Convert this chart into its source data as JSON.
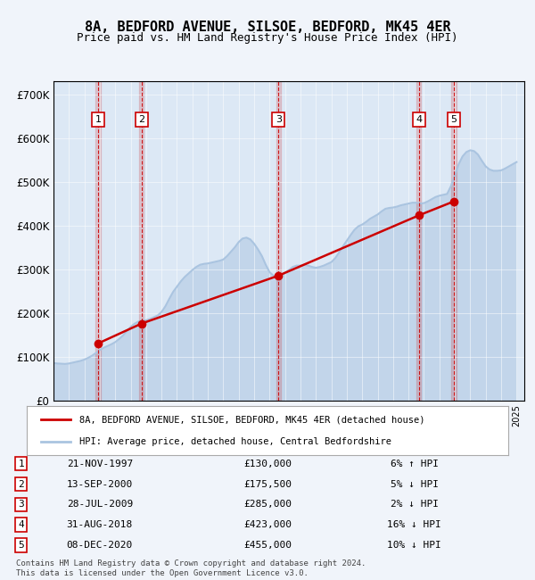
{
  "title": "8A, BEDFORD AVENUE, SILSOE, BEDFORD, MK45 4ER",
  "subtitle": "Price paid vs. HM Land Registry's House Price Index (HPI)",
  "footer": "Contains HM Land Registry data © Crown copyright and database right 2024.\nThis data is licensed under the Open Government Licence v3.0.",
  "legend_line1": "8A, BEDFORD AVENUE, SILSOE, BEDFORD, MK45 4ER (detached house)",
  "legend_line2": "HPI: Average price, detached house, Central Bedfordshire",
  "hpi_color": "#aac4e0",
  "price_color": "#cc0000",
  "background_color": "#f0f4fa",
  "plot_bg_color": "#dce8f5",
  "ylim": [
    0,
    730000
  ],
  "yticks": [
    0,
    100000,
    200000,
    300000,
    400000,
    500000,
    600000,
    700000
  ],
  "ytick_labels": [
    "£0",
    "£100K",
    "£200K",
    "£300K",
    "£400K",
    "£500K",
    "£600K",
    "£700K"
  ],
  "xmin": 1995.0,
  "xmax": 2025.5,
  "transactions": [
    {
      "num": 1,
      "date": 1997.89,
      "price": 130000,
      "label": "21-NOV-1997",
      "price_str": "£130,000",
      "pct": "6% ↑ HPI"
    },
    {
      "num": 2,
      "date": 2000.71,
      "price": 175500,
      "label": "13-SEP-2000",
      "price_str": "£175,500",
      "pct": "5% ↓ HPI"
    },
    {
      "num": 3,
      "date": 2009.57,
      "price": 285000,
      "label": "28-JUL-2009",
      "price_str": "£285,000",
      "pct": "2% ↓ HPI"
    },
    {
      "num": 4,
      "date": 2018.67,
      "price": 423000,
      "label": "31-AUG-2018",
      "price_str": "£423,000",
      "pct": "16% ↓ HPI"
    },
    {
      "num": 5,
      "date": 2020.94,
      "price": 455000,
      "label": "08-DEC-2020",
      "price_str": "£455,000",
      "pct": "10% ↓ HPI"
    }
  ],
  "hpi_data": {
    "x": [
      1995.0,
      1995.25,
      1995.5,
      1995.75,
      1996.0,
      1996.25,
      1996.5,
      1996.75,
      1997.0,
      1997.25,
      1997.5,
      1997.75,
      1998.0,
      1998.25,
      1998.5,
      1998.75,
      1999.0,
      1999.25,
      1999.5,
      1999.75,
      2000.0,
      2000.25,
      2000.5,
      2000.75,
      2001.0,
      2001.25,
      2001.5,
      2001.75,
      2002.0,
      2002.25,
      2002.5,
      2002.75,
      2003.0,
      2003.25,
      2003.5,
      2003.75,
      2004.0,
      2004.25,
      2004.5,
      2004.75,
      2005.0,
      2005.25,
      2005.5,
      2005.75,
      2006.0,
      2006.25,
      2006.5,
      2006.75,
      2007.0,
      2007.25,
      2007.5,
      2007.75,
      2008.0,
      2008.25,
      2008.5,
      2008.75,
      2009.0,
      2009.25,
      2009.5,
      2009.75,
      2010.0,
      2010.25,
      2010.5,
      2010.75,
      2011.0,
      2011.25,
      2011.5,
      2011.75,
      2012.0,
      2012.25,
      2012.5,
      2012.75,
      2013.0,
      2013.25,
      2013.5,
      2013.75,
      2014.0,
      2014.25,
      2014.5,
      2014.75,
      2015.0,
      2015.25,
      2015.5,
      2015.75,
      2016.0,
      2016.25,
      2016.5,
      2016.75,
      2017.0,
      2017.25,
      2017.5,
      2017.75,
      2018.0,
      2018.25,
      2018.5,
      2018.75,
      2019.0,
      2019.25,
      2019.5,
      2019.75,
      2020.0,
      2020.25,
      2020.5,
      2020.75,
      2021.0,
      2021.25,
      2021.5,
      2021.75,
      2022.0,
      2022.25,
      2022.5,
      2022.75,
      2023.0,
      2023.25,
      2023.5,
      2023.75,
      2024.0,
      2024.25,
      2024.5,
      2024.75,
      2025.0
    ],
    "y": [
      85000,
      84000,
      83500,
      83000,
      84000,
      86000,
      88000,
      90000,
      93000,
      97000,
      102000,
      108000,
      115000,
      120000,
      124000,
      128000,
      133000,
      140000,
      148000,
      158000,
      168000,
      175000,
      180000,
      182000,
      183000,
      186000,
      190000,
      194000,
      202000,
      215000,
      232000,
      248000,
      260000,
      272000,
      282000,
      290000,
      298000,
      305000,
      310000,
      312000,
      313000,
      315000,
      317000,
      319000,
      322000,
      330000,
      340000,
      350000,
      362000,
      370000,
      372000,
      368000,
      358000,
      345000,
      330000,
      310000,
      293000,
      285000,
      282000,
      286000,
      292000,
      298000,
      305000,
      308000,
      308000,
      310000,
      308000,
      305000,
      303000,
      305000,
      308000,
      312000,
      316000,
      325000,
      338000,
      352000,
      365000,
      378000,
      390000,
      398000,
      402000,
      408000,
      415000,
      420000,
      425000,
      432000,
      438000,
      440000,
      441000,
      443000,
      446000,
      448000,
      450000,
      452000,
      452000,
      450000,
      451000,
      455000,
      460000,
      465000,
      468000,
      470000,
      472000,
      490000,
      515000,
      540000,
      558000,
      568000,
      572000,
      570000,
      562000,
      548000,
      535000,
      528000,
      525000,
      525000,
      526000,
      530000,
      535000,
      540000,
      545000
    ]
  },
  "price_data": {
    "x": [
      1997.89,
      2000.71,
      2009.57,
      2018.67,
      2020.94
    ],
    "y": [
      130000,
      175500,
      285000,
      423000,
      455000
    ]
  }
}
